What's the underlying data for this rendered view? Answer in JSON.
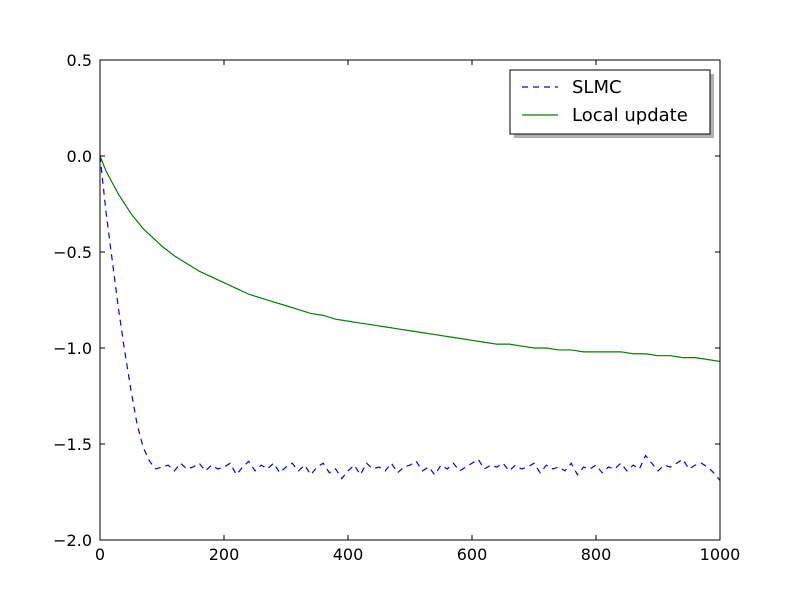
{
  "chart_data": {
    "type": "line",
    "title": "",
    "xlabel": "",
    "ylabel": "",
    "xlim": [
      0,
      1000
    ],
    "ylim": [
      -2.0,
      0.5
    ],
    "x_ticks": [
      0,
      200,
      400,
      600,
      800,
      1000
    ],
    "x_tick_labels": [
      "0",
      "200",
      "400",
      "600",
      "800",
      "1000"
    ],
    "y_ticks": [
      0.5,
      0.0,
      -0.5,
      -1.0,
      -1.5,
      -2.0
    ],
    "y_tick_labels": [
      "0.5",
      "0.0",
      "−0.5",
      "−1.0",
      "−1.5",
      "−2.0"
    ],
    "grid": false,
    "legend_position": "top-right",
    "series": [
      {
        "name": "SLMC",
        "color": "#0000ff",
        "line_style": "dashed",
        "x": [
          0,
          10,
          20,
          30,
          40,
          50,
          60,
          70,
          80,
          90,
          100,
          110,
          120,
          130,
          140,
          150,
          160,
          170,
          180,
          190,
          200,
          210,
          220,
          230,
          240,
          250,
          260,
          270,
          280,
          290,
          300,
          310,
          320,
          330,
          340,
          350,
          360,
          370,
          380,
          390,
          400,
          410,
          420,
          430,
          440,
          450,
          460,
          470,
          480,
          490,
          500,
          510,
          520,
          530,
          540,
          550,
          560,
          570,
          580,
          590,
          600,
          610,
          620,
          630,
          640,
          650,
          660,
          670,
          680,
          690,
          700,
          710,
          720,
          730,
          740,
          750,
          760,
          770,
          780,
          790,
          800,
          810,
          820,
          830,
          840,
          850,
          860,
          870,
          880,
          890,
          900,
          910,
          920,
          930,
          940,
          950,
          960,
          970,
          980,
          990,
          1000
        ],
        "y": [
          0.0,
          -0.3,
          -0.55,
          -0.8,
          -1.02,
          -1.22,
          -1.4,
          -1.52,
          -1.59,
          -1.63,
          -1.62,
          -1.61,
          -1.64,
          -1.6,
          -1.63,
          -1.62,
          -1.6,
          -1.64,
          -1.61,
          -1.63,
          -1.62,
          -1.6,
          -1.66,
          -1.62,
          -1.59,
          -1.64,
          -1.61,
          -1.63,
          -1.6,
          -1.65,
          -1.62,
          -1.6,
          -1.64,
          -1.61,
          -1.66,
          -1.62,
          -1.6,
          -1.65,
          -1.63,
          -1.68,
          -1.64,
          -1.61,
          -1.66,
          -1.6,
          -1.63,
          -1.62,
          -1.64,
          -1.6,
          -1.65,
          -1.62,
          -1.61,
          -1.59,
          -1.64,
          -1.62,
          -1.66,
          -1.61,
          -1.63,
          -1.6,
          -1.64,
          -1.62,
          -1.6,
          -1.58,
          -1.63,
          -1.61,
          -1.62,
          -1.6,
          -1.64,
          -1.61,
          -1.63,
          -1.62,
          -1.6,
          -1.65,
          -1.61,
          -1.63,
          -1.62,
          -1.64,
          -1.6,
          -1.66,
          -1.62,
          -1.63,
          -1.61,
          -1.65,
          -1.62,
          -1.63,
          -1.6,
          -1.64,
          -1.61,
          -1.63,
          -1.56,
          -1.6,
          -1.64,
          -1.61,
          -1.62,
          -1.6,
          -1.58,
          -1.63,
          -1.61,
          -1.6,
          -1.62,
          -1.65,
          -1.69
        ]
      },
      {
        "name": "Local update",
        "color": "#008000",
        "line_style": "solid",
        "x": [
          0,
          10,
          20,
          30,
          40,
          50,
          60,
          70,
          80,
          90,
          100,
          120,
          140,
          160,
          180,
          200,
          220,
          240,
          260,
          280,
          300,
          320,
          340,
          360,
          380,
          400,
          420,
          440,
          460,
          480,
          500,
          520,
          540,
          560,
          580,
          600,
          620,
          640,
          660,
          680,
          700,
          720,
          740,
          760,
          780,
          800,
          820,
          840,
          860,
          880,
          900,
          920,
          940,
          960,
          980,
          1000
        ],
        "y": [
          0.0,
          -0.08,
          -0.14,
          -0.2,
          -0.25,
          -0.3,
          -0.34,
          -0.38,
          -0.41,
          -0.44,
          -0.47,
          -0.52,
          -0.56,
          -0.6,
          -0.63,
          -0.66,
          -0.69,
          -0.72,
          -0.74,
          -0.76,
          -0.78,
          -0.8,
          -0.82,
          -0.83,
          -0.85,
          -0.86,
          -0.87,
          -0.88,
          -0.89,
          -0.9,
          -0.91,
          -0.92,
          -0.93,
          -0.94,
          -0.95,
          -0.96,
          -0.97,
          -0.98,
          -0.98,
          -0.99,
          -1.0,
          -1.0,
          -1.01,
          -1.01,
          -1.02,
          -1.02,
          -1.02,
          -1.02,
          -1.03,
          -1.03,
          -1.04,
          -1.04,
          -1.05,
          -1.05,
          -1.06,
          -1.07
        ]
      }
    ]
  }
}
